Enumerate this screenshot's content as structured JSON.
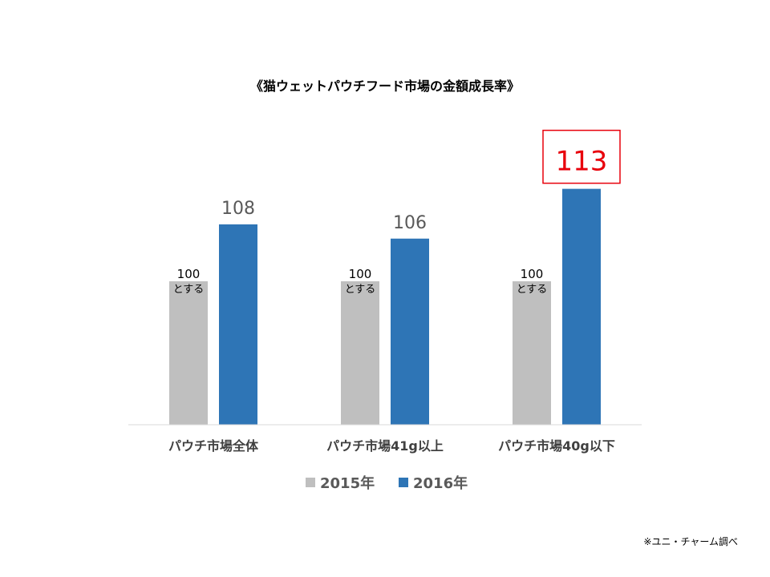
{
  "chart_data": {
    "type": "bar",
    "title": "《猫ウェットパウチフード市場の金額成長率》",
    "categories": [
      "パウチ市場全体",
      "パウチ市場41g以上",
      "パウチ市場40g以下"
    ],
    "series": [
      {
        "name": "2015年",
        "values": [
          100,
          100,
          100
        ],
        "color": "#bfbfbf",
        "data_labels": [
          "100",
          "100",
          "100"
        ],
        "data_notes": [
          "とする",
          "とする",
          "とする"
        ]
      },
      {
        "name": "2016年",
        "values": [
          108,
          106,
          113
        ],
        "color": "#2e75b6",
        "data_labels": [
          "108",
          "106",
          "113"
        ]
      }
    ],
    "highlight": {
      "category_index": 2,
      "series_index": 1,
      "color": "#e8000b"
    },
    "ylim": [
      0,
      120
    ],
    "grid": false,
    "legend": "bottom"
  },
  "footer": "※ユニ・チャーム調べ"
}
